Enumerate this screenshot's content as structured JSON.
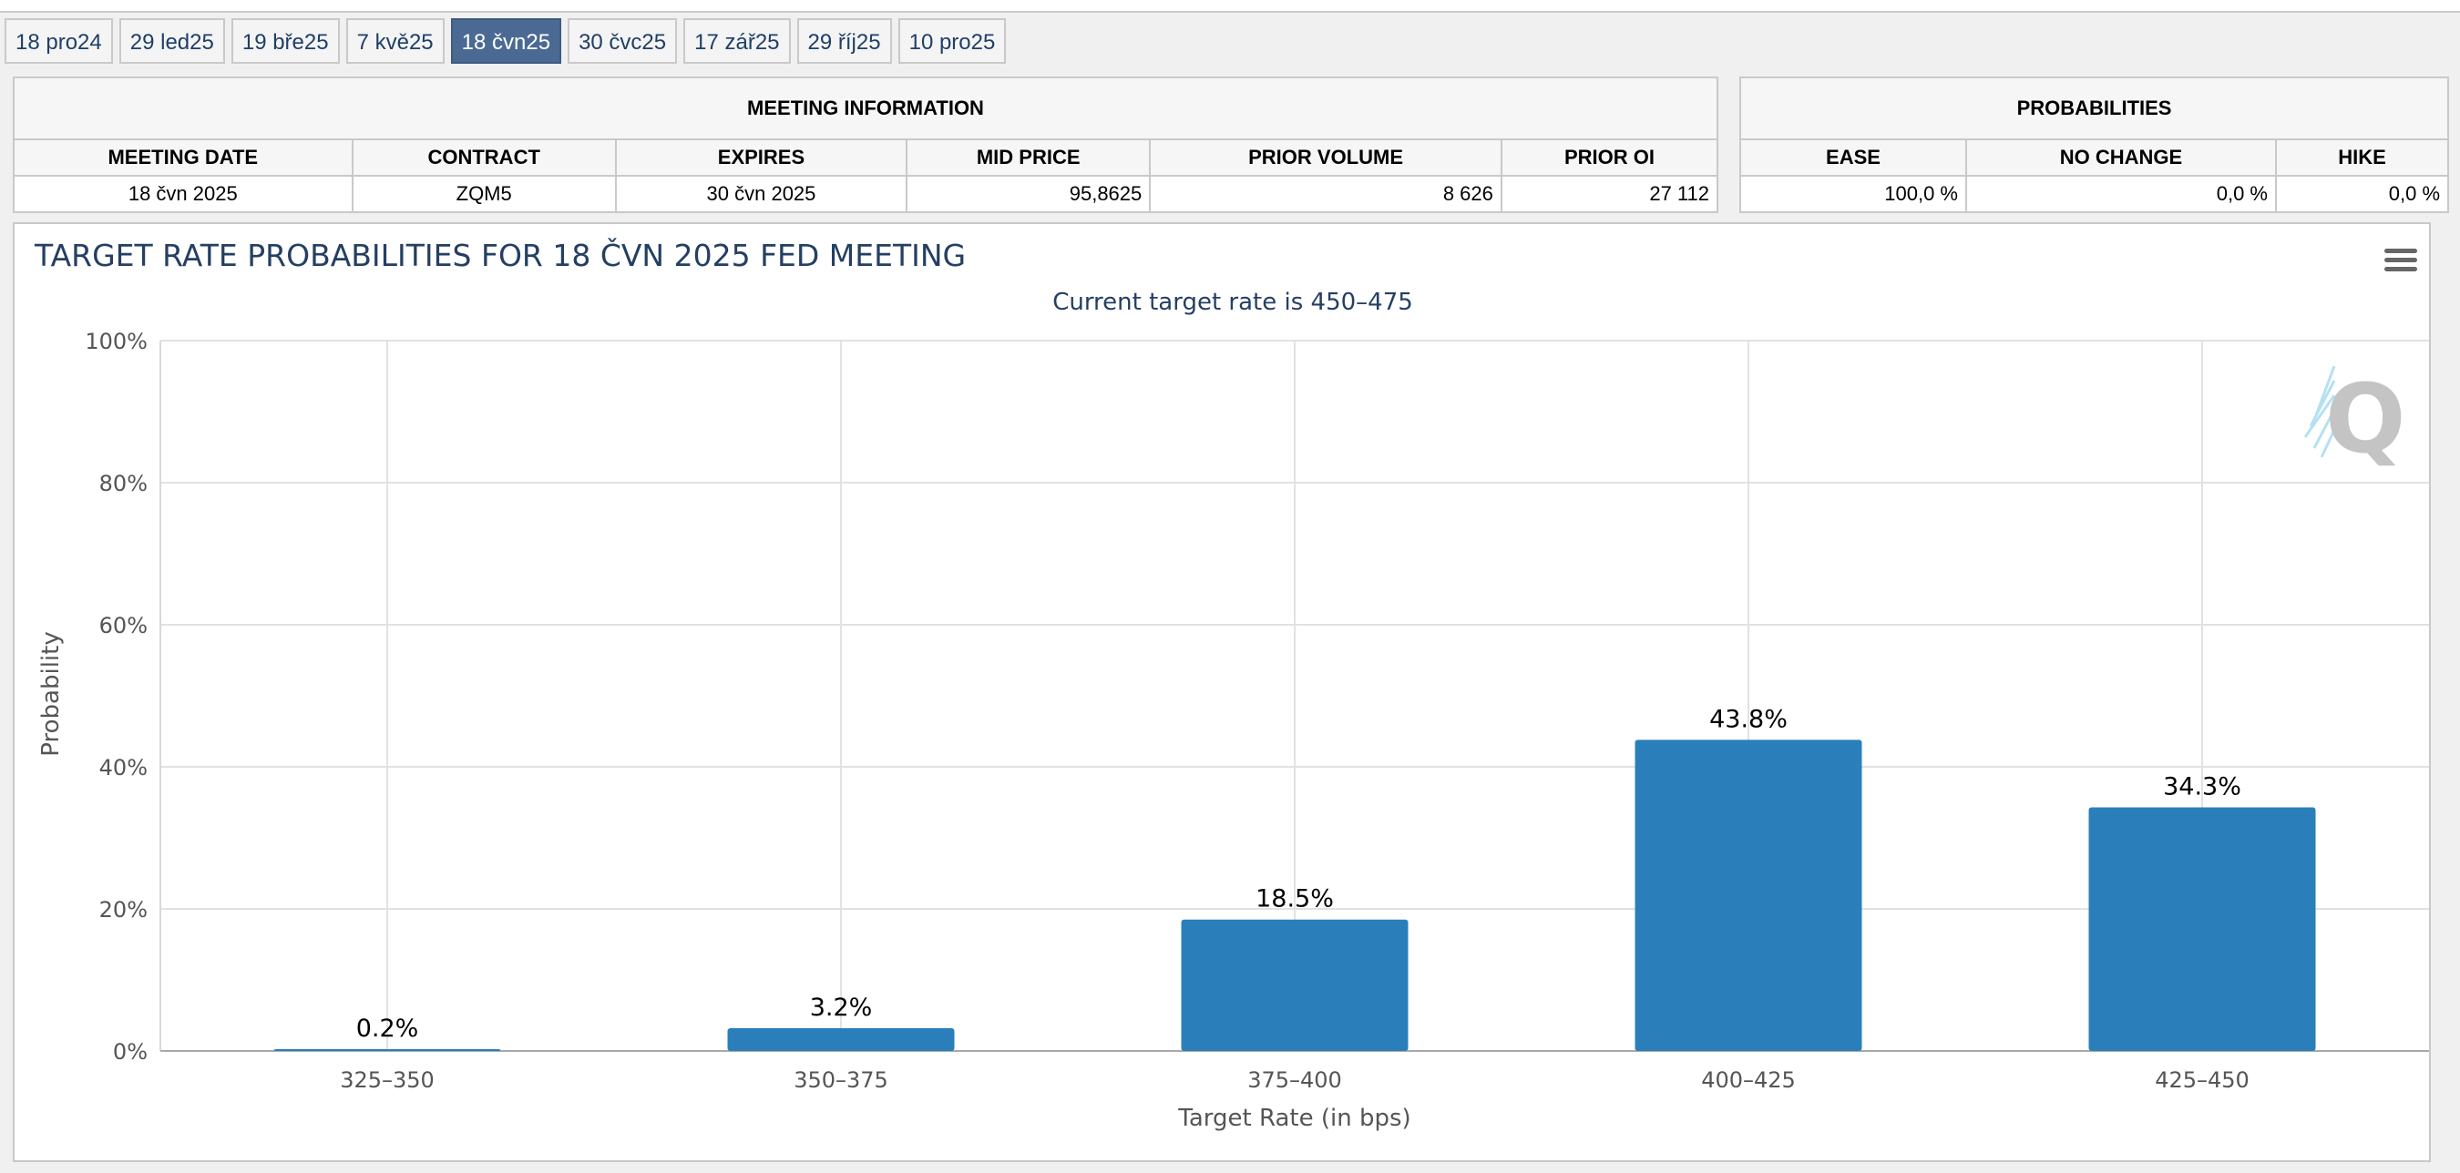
{
  "tabs": [
    {
      "label": "18 pro24",
      "active": false
    },
    {
      "label": "29 led25",
      "active": false
    },
    {
      "label": "19 bře25",
      "active": false
    },
    {
      "label": "7 kvě25",
      "active": false
    },
    {
      "label": "18 čvn25",
      "active": true
    },
    {
      "label": "30 čvc25",
      "active": false
    },
    {
      "label": "17 zář25",
      "active": false
    },
    {
      "label": "29 říj25",
      "active": false
    },
    {
      "label": "10 pro25",
      "active": false
    }
  ],
  "meeting_info": {
    "section_title": "MEETING INFORMATION",
    "headers": {
      "meeting_date": "MEETING DATE",
      "contract": "CONTRACT",
      "expires": "EXPIRES",
      "mid_price": "MID PRICE",
      "prior_volume": "PRIOR VOLUME",
      "prior_oi": "PRIOR OI"
    },
    "values": {
      "meeting_date": "18 čvn 2025",
      "contract": "ZQM5",
      "expires": "30 čvn 2025",
      "mid_price": "95,8625",
      "prior_volume": "8 626",
      "prior_oi": "27 112"
    }
  },
  "probabilities": {
    "section_title": "PROBABILITIES",
    "headers": {
      "ease": "EASE",
      "no_change": "NO CHANGE",
      "hike": "HIKE"
    },
    "values": {
      "ease": "100,0 %",
      "no_change": "0,0 %",
      "hike": "0,0 %"
    }
  },
  "chart_menu_icon": "hamburger-menu-icon",
  "watermark_icon": "quikstrike-q-logo",
  "chart_data": {
    "type": "bar",
    "title": "TARGET RATE PROBABILITIES FOR 18 ČVN 2025 FED MEETING",
    "subtitle": "Current target rate is 450–475",
    "xlabel": "Target Rate (in bps)",
    "ylabel": "Probability",
    "categories": [
      "325–350",
      "350–375",
      "375–400",
      "400–425",
      "425–450"
    ],
    "values": [
      0.2,
      3.2,
      18.5,
      43.8,
      34.3
    ],
    "value_labels": [
      "0.2%",
      "3.2%",
      "18.5%",
      "43.8%",
      "34.3%"
    ],
    "ylim": [
      0,
      100
    ],
    "yticks": [
      0,
      20,
      40,
      60,
      80,
      100
    ],
    "ytick_labels": [
      "0%",
      "20%",
      "40%",
      "60%",
      "80%",
      "100%"
    ],
    "grid": true,
    "bar_color": "#2a7fba",
    "title_color": "#253f63"
  }
}
